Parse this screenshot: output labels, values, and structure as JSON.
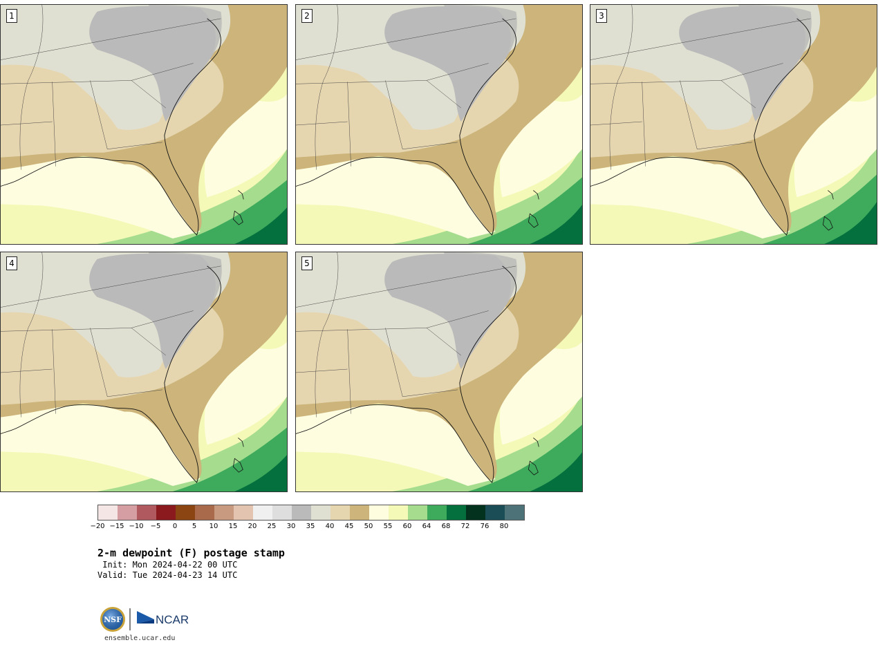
{
  "panels": [
    {
      "label": "1"
    },
    {
      "label": "2"
    },
    {
      "label": "3"
    },
    {
      "label": "4"
    },
    {
      "label": "5"
    }
  ],
  "colorbar": {
    "colors": [
      "#f5e6e6",
      "#d49ea2",
      "#b05a60",
      "#8b1a1f",
      "#8b4513",
      "#a86a4a",
      "#c89a80",
      "#e3c4b0",
      "#f0f0f0",
      "#dedede",
      "#bababa",
      "#e0e0d2",
      "#e6d6b0",
      "#ccb47a",
      "#fffde0",
      "#f5f9b8",
      "#a5dc8e",
      "#3eaa5c",
      "#04703e",
      "#03331f",
      "#1a4d55",
      "#4d7378"
    ],
    "ticks": [
      "−20",
      "−15",
      "−10",
      "−5",
      "0",
      "5",
      "10",
      "15",
      "20",
      "25",
      "30",
      "35",
      "40",
      "45",
      "50",
      "55",
      "60",
      "64",
      "68",
      "72",
      "76",
      "80"
    ]
  },
  "title": "2-m dewpoint (F) postage stamp",
  "init": " Init: Mon 2024-04-22 00 UTC",
  "valid": "Valid: Tue 2024-04-23 14 UTC",
  "logos": {
    "nsf": "NSF",
    "ncar": "NCAR"
  },
  "website": "ensemble.ucar.edu",
  "map_colors": {
    "ocean_light": "#fffde0",
    "ocean_yellow": "#f5f9b8",
    "ocean_green_light": "#a5dc8e",
    "ocean_green": "#3eaa5c",
    "ocean_green_dark": "#04703e",
    "land_tan": "#ccb47a",
    "land_beige": "#e6d6b0",
    "land_light": "#e0e0d2",
    "land_gray": "#bababa"
  }
}
